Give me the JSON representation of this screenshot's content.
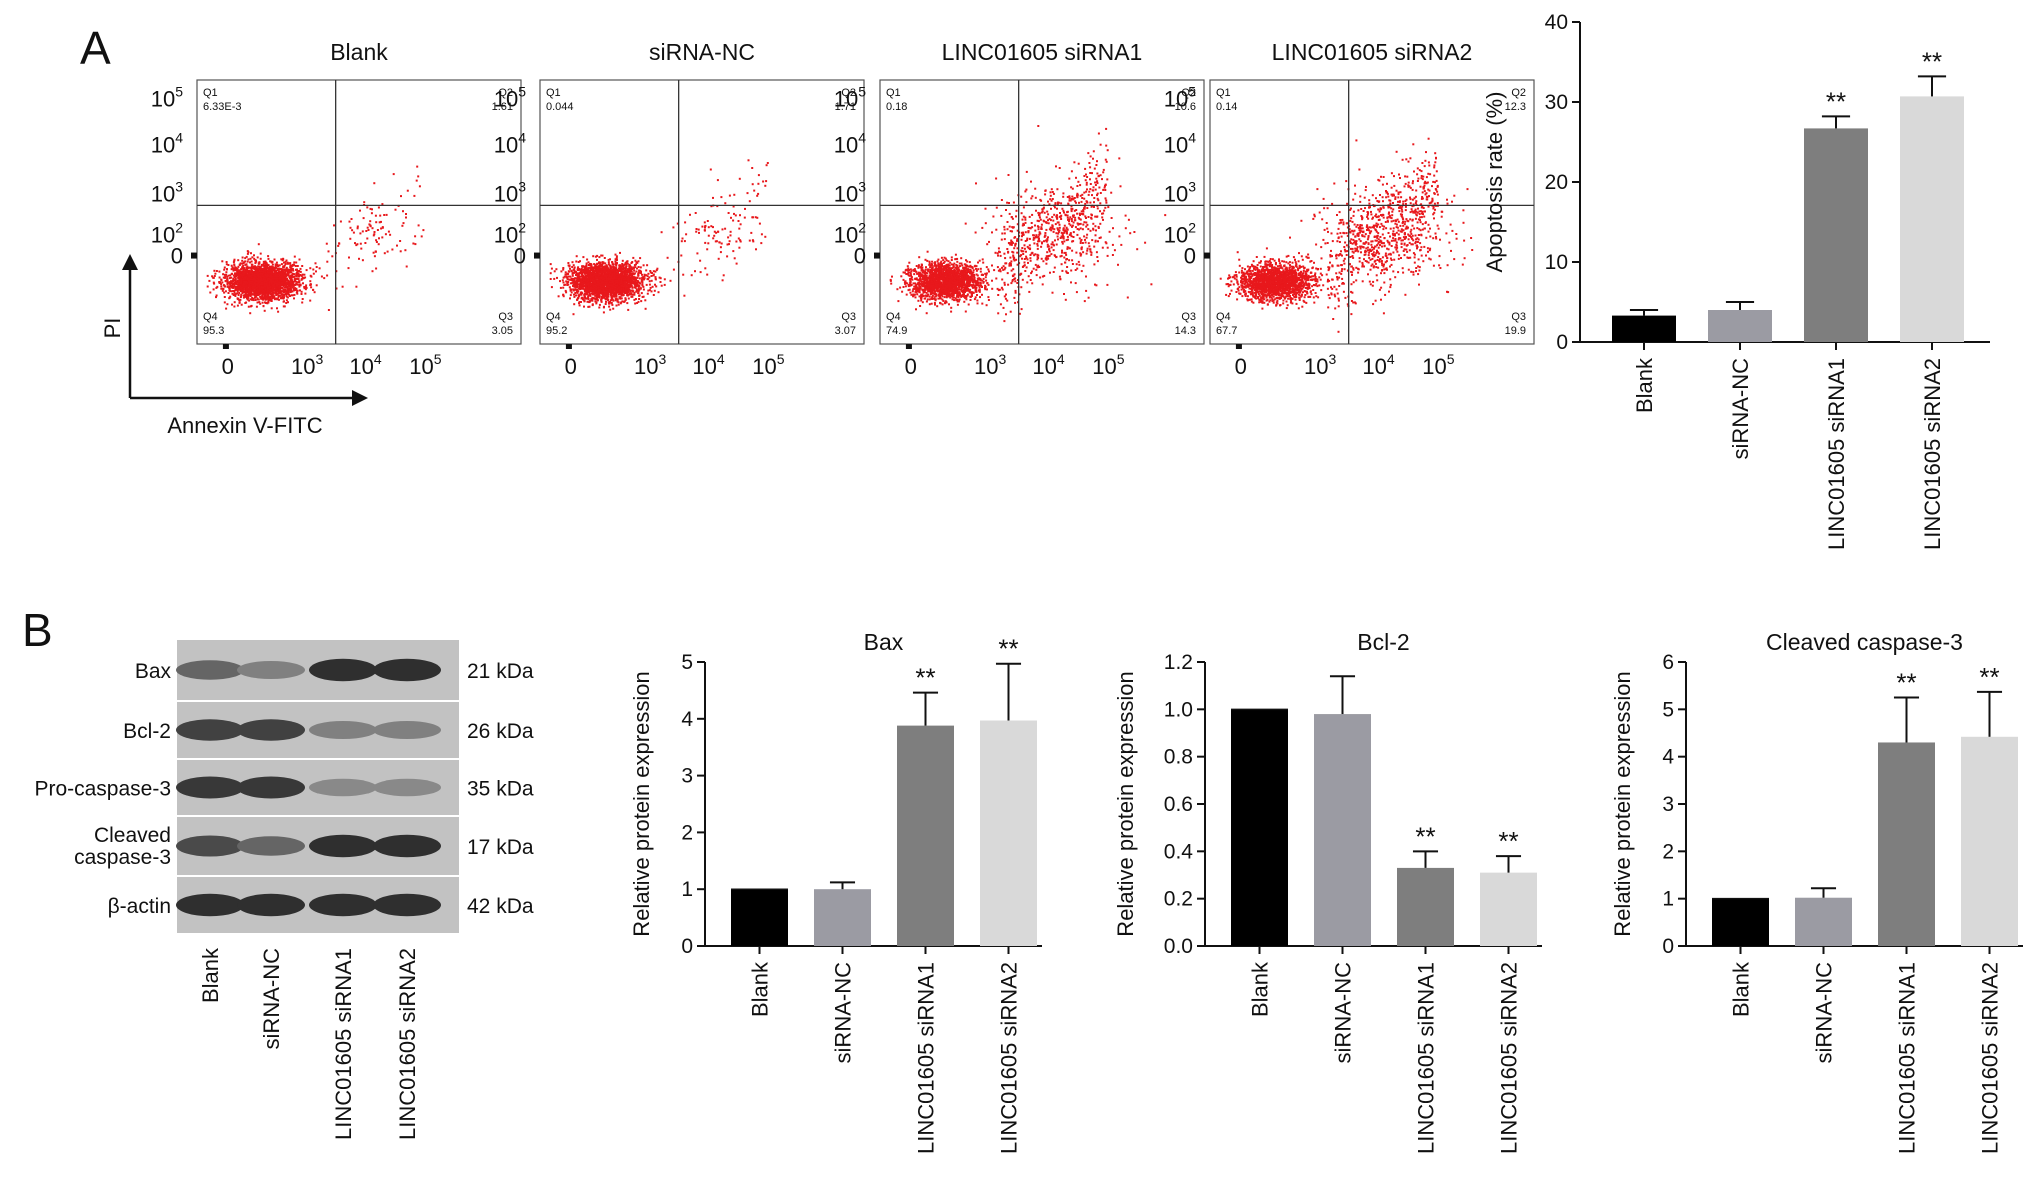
{
  "panel_a_letter": "A",
  "panel_b_letter": "B",
  "flow": {
    "ylabel": "PI",
    "xlabel": "Annexin V-FITC",
    "quadrant_names": [
      "Q1",
      "Q2",
      "Q3",
      "Q4"
    ],
    "x_ticks": [
      "0",
      "10",
      "10",
      "10"
    ],
    "x_tick_exponents": [
      "",
      "3",
      "4",
      "5"
    ],
    "y_ticks": [
      "0",
      "10",
      "10",
      "10",
      "10"
    ],
    "y_tick_exponents": [
      "",
      "2",
      "3",
      "4",
      "5"
    ],
    "plots": [
      {
        "title": "Blank",
        "q1": "6.33E-3",
        "q2": "1.61",
        "q3": "3.05",
        "q4": "95.3"
      },
      {
        "title": "siRNA-NC",
        "q1": "0.044",
        "q2": "1.71",
        "q3": "3.07",
        "q4": "95.2"
      },
      {
        "title": "LINC01605 siRNA1",
        "q1": "0.18",
        "q2": "10.6",
        "q3": "14.3",
        "q4": "74.9"
      },
      {
        "title": "LINC01605 siRNA2",
        "q1": "0.14",
        "q2": "12.3",
        "q3": "19.9",
        "q4": "67.7"
      }
    ]
  },
  "blot": {
    "bands": [
      {
        "name": "Bax",
        "size": "21 kDa"
      },
      {
        "name": "Bcl-2",
        "size": "26 kDa"
      },
      {
        "name": "Pro-caspase-3",
        "size": "35 kDa"
      },
      {
        "name": "Cleaved caspase-3",
        "size": "17 kDa"
      },
      {
        "name": "β-actin",
        "size": "42 kDa"
      }
    ],
    "lanes": [
      "Blank",
      "siRNA-NC",
      "LINC01605 siRNA1",
      "LINC01605 siRNA2"
    ],
    "intensities": [
      [
        0.55,
        0.4,
        0.85,
        0.85
      ],
      [
        0.75,
        0.75,
        0.4,
        0.4
      ],
      [
        0.8,
        0.8,
        0.35,
        0.35
      ],
      [
        0.7,
        0.55,
        0.85,
        0.85
      ],
      [
        0.85,
        0.85,
        0.85,
        0.85
      ]
    ]
  },
  "colors": {
    "dots": "#e8181c",
    "bar_blank": "#000000",
    "bar_nc": "#9b9ba3",
    "bar_si1": "#7e7e7e",
    "bar_si2": "#d9d9d9"
  },
  "chart_data": [
    {
      "type": "bar",
      "title": "",
      "ylabel": "Apoptosis rate (%)",
      "categories": [
        "Blank",
        "siRNA-NC",
        "LINC01605 siRNA1",
        "LINC01605 siRNA2"
      ],
      "values": [
        3.3,
        4.0,
        26.7,
        30.7
      ],
      "errors": [
        0.7,
        1.0,
        1.5,
        2.5
      ],
      "significance": [
        "",
        "",
        "**",
        "**"
      ],
      "ylim": [
        0,
        40
      ],
      "yticks": [
        "0",
        "10",
        "20",
        "30",
        "40"
      ]
    },
    {
      "type": "bar",
      "title": "Bax",
      "ylabel": "Relative protein expression",
      "categories": [
        "Blank",
        "siRNA-NC",
        "LINC01605 siRNA1",
        "LINC01605 siRNA2"
      ],
      "values": [
        1.0,
        1.0,
        3.88,
        3.97
      ],
      "errors": [
        0.0,
        0.12,
        0.58,
        1.0
      ],
      "significance": [
        "",
        "",
        "**",
        "**"
      ],
      "ylim": [
        0,
        5
      ],
      "yticks": [
        "0",
        "1",
        "2",
        "3",
        "4",
        "5"
      ]
    },
    {
      "type": "bar",
      "title": "Bcl-2",
      "ylabel": "Relative protein expression",
      "categories": [
        "Blank",
        "siRNA-NC",
        "LINC01605 siRNA1",
        "LINC01605 siRNA2"
      ],
      "values": [
        1.0,
        0.98,
        0.33,
        0.31
      ],
      "errors": [
        0.0,
        0.16,
        0.07,
        0.07
      ],
      "significance": [
        "",
        "",
        "**",
        "**"
      ],
      "ylim": [
        0,
        1.2
      ],
      "yticks": [
        "0.0",
        "0.2",
        "0.4",
        "0.6",
        "0.8",
        "1.0",
        "1.2"
      ]
    },
    {
      "type": "bar",
      "title": "Cleaved caspase-3",
      "ylabel": "Relative protein expression",
      "categories": [
        "Blank",
        "siRNA-NC",
        "LINC01605 siRNA1",
        "LINC01605 siRNA2"
      ],
      "values": [
        1.0,
        1.02,
        4.3,
        4.42
      ],
      "errors": [
        0.0,
        0.2,
        0.95,
        0.95
      ],
      "significance": [
        "",
        "",
        "**",
        "**"
      ],
      "ylim": [
        0,
        6
      ],
      "yticks": [
        "0",
        "1",
        "2",
        "3",
        "4",
        "5",
        "6"
      ]
    }
  ]
}
